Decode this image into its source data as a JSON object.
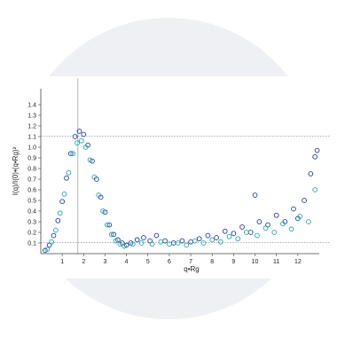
{
  "colors": {
    "background": "#ffffff",
    "circle": "#eef0f4",
    "series_dark": "#1f3f9e",
    "series_light": "#25a7a8"
  },
  "chart_data": {
    "type": "scatter",
    "title": "",
    "xlabel": "q•Rg",
    "ylabel": "I(q)/I(0)•(q•Rg)²",
    "xlim": [
      0,
      13
    ],
    "ylim": [
      0,
      1.55
    ],
    "x_ticks": [
      "1",
      "2",
      "3",
      "4",
      "5",
      "6",
      "7",
      "8",
      "9",
      "10",
      "11",
      "12"
    ],
    "y_ticks": [
      "0.1",
      "0.2",
      "0.3",
      "0.4",
      "0.5",
      "0.6",
      "0.7",
      "0.8",
      "0.9",
      "1.0",
      "1.1",
      "1.2",
      "1.3",
      "1.4"
    ],
    "reference_lines": {
      "x": 1.732,
      "y_upper": 1.104,
      "y_lower": 0.104
    },
    "grid": false,
    "legend": "none",
    "series": [
      {
        "points": [
          [
            0.2,
            0.03
          ],
          [
            0.4,
            0.08
          ],
          [
            0.6,
            0.17
          ],
          [
            0.8,
            0.31
          ],
          [
            1.0,
            0.49
          ],
          [
            1.2,
            0.71
          ],
          [
            1.4,
            0.94
          ],
          [
            1.6,
            1.1
          ],
          [
            1.8,
            1.15
          ],
          [
            2.0,
            1.12
          ],
          [
            2.2,
            1.02
          ],
          [
            2.4,
            0.87
          ],
          [
            2.6,
            0.7
          ],
          [
            2.8,
            0.53
          ],
          [
            3.0,
            0.39
          ],
          [
            3.2,
            0.27
          ],
          [
            3.4,
            0.18
          ],
          [
            3.6,
            0.13
          ],
          [
            3.8,
            0.1
          ],
          [
            4.0,
            0.08
          ],
          [
            4.2,
            0.1
          ],
          [
            4.5,
            0.13
          ],
          [
            4.8,
            0.15
          ],
          [
            5.1,
            0.12
          ],
          [
            5.4,
            0.17
          ],
          [
            5.8,
            0.12
          ],
          [
            6.2,
            0.1
          ],
          [
            6.6,
            0.12
          ],
          [
            7.0,
            0.11
          ],
          [
            7.4,
            0.14
          ],
          [
            7.8,
            0.17
          ],
          [
            8.2,
            0.15
          ],
          [
            8.6,
            0.21
          ],
          [
            9.0,
            0.19
          ],
          [
            9.4,
            0.25
          ],
          [
            9.8,
            0.2
          ],
          [
            10.0,
            0.55
          ],
          [
            10.2,
            0.3
          ],
          [
            10.6,
            0.27
          ],
          [
            11.0,
            0.36
          ],
          [
            11.4,
            0.3
          ],
          [
            11.8,
            0.42
          ],
          [
            12.0,
            0.33
          ],
          [
            12.3,
            0.5
          ],
          [
            12.6,
            0.75
          ],
          [
            12.8,
            0.91
          ],
          [
            12.9,
            0.97
          ]
        ]
      },
      {
        "points": [
          [
            0.3,
            0.04
          ],
          [
            0.5,
            0.11
          ],
          [
            0.7,
            0.22
          ],
          [
            0.9,
            0.38
          ],
          [
            1.1,
            0.56
          ],
          [
            1.3,
            0.76
          ],
          [
            1.5,
            0.94
          ],
          [
            1.7,
            1.04
          ],
          [
            1.9,
            1.06
          ],
          [
            2.1,
            1.0
          ],
          [
            2.3,
            0.88
          ],
          [
            2.5,
            0.72
          ],
          [
            2.7,
            0.55
          ],
          [
            2.9,
            0.4
          ],
          [
            3.1,
            0.27
          ],
          [
            3.3,
            0.18
          ],
          [
            3.5,
            0.12
          ],
          [
            3.7,
            0.09
          ],
          [
            3.9,
            0.07
          ],
          [
            4.3,
            0.09
          ],
          [
            4.7,
            0.1
          ],
          [
            5.2,
            0.09
          ],
          [
            5.6,
            0.11
          ],
          [
            6.0,
            0.09
          ],
          [
            6.4,
            0.1
          ],
          [
            6.8,
            0.08
          ],
          [
            7.2,
            0.12
          ],
          [
            7.6,
            0.1
          ],
          [
            8.0,
            0.13
          ],
          [
            8.4,
            0.11
          ],
          [
            8.8,
            0.16
          ],
          [
            9.2,
            0.14
          ],
          [
            9.6,
            0.2
          ],
          [
            10.1,
            0.17
          ],
          [
            10.5,
            0.24
          ],
          [
            10.9,
            0.2
          ],
          [
            11.3,
            0.28
          ],
          [
            11.7,
            0.23
          ],
          [
            12.1,
            0.35
          ],
          [
            12.5,
            0.3
          ],
          [
            12.8,
            0.6
          ]
        ]
      }
    ]
  }
}
